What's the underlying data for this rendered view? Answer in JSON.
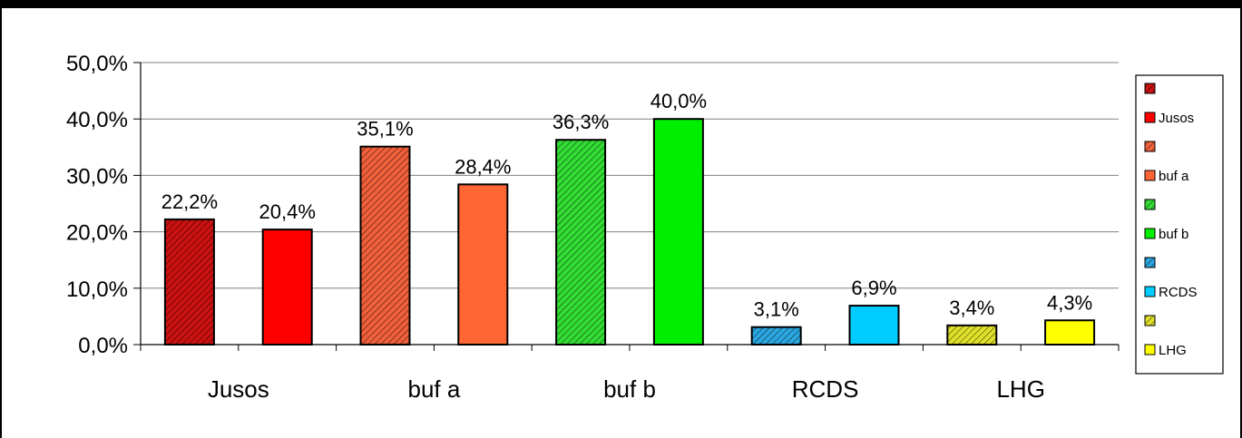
{
  "chart_data": {
    "type": "bar",
    "bars": [
      {
        "series": "",
        "value": 22.2,
        "label": "22,2%",
        "color": "#cc1111",
        "hatched": true
      },
      {
        "series": "Jusos",
        "value": 20.4,
        "label": "20,4%",
        "color": "#ff0000",
        "hatched": false
      },
      {
        "series": "",
        "value": 35.1,
        "label": "35,1%",
        "color": "#f0603a",
        "hatched": true
      },
      {
        "series": "buf a",
        "value": 28.4,
        "label": "28,4%",
        "color": "#ff6633",
        "hatched": false
      },
      {
        "series": "",
        "value": 36.3,
        "label": "36,3%",
        "color": "#33dd33",
        "hatched": true
      },
      {
        "series": "buf b",
        "value": 40.0,
        "label": "40,0%",
        "color": "#00ee00",
        "hatched": false
      },
      {
        "series": "",
        "value": 3.1,
        "label": "3,1%",
        "color": "#2ba6e0",
        "hatched": true
      },
      {
        "series": "RCDS",
        "value": 6.9,
        "label": "6,9%",
        "color": "#00ccff",
        "hatched": false
      },
      {
        "series": "",
        "value": 3.4,
        "label": "3,4%",
        "color": "#e0e02a",
        "hatched": true
      },
      {
        "series": "LHG",
        "value": 4.3,
        "label": "4,3%",
        "color": "#ffff00",
        "hatched": false
      }
    ],
    "x_tick_labels": [
      "Jusos",
      "buf a",
      "buf b",
      "RCDS",
      "LHG"
    ],
    "y_ticks": [
      "0,0%",
      "10,0%",
      "20,0%",
      "30,0%",
      "40,0%",
      "50,0%"
    ],
    "ylim": [
      0,
      50
    ],
    "y_unit": "percent",
    "grid": true,
    "legend_position": "right",
    "legend": [
      {
        "label": "",
        "color": "#cc1111",
        "hatched": true
      },
      {
        "label": "Jusos",
        "color": "#ff0000",
        "hatched": false
      },
      {
        "label": "",
        "color": "#f0603a",
        "hatched": true
      },
      {
        "label": "buf a",
        "color": "#ff6633",
        "hatched": false
      },
      {
        "label": "",
        "color": "#33dd33",
        "hatched": true
      },
      {
        "label": "buf b",
        "color": "#00ee00",
        "hatched": false
      },
      {
        "label": "",
        "color": "#2ba6e0",
        "hatched": true
      },
      {
        "label": "RCDS",
        "color": "#00ccff",
        "hatched": false
      },
      {
        "label": "",
        "color": "#e0e02a",
        "hatched": true
      },
      {
        "label": "LHG",
        "color": "#ffff00",
        "hatched": false
      }
    ]
  }
}
